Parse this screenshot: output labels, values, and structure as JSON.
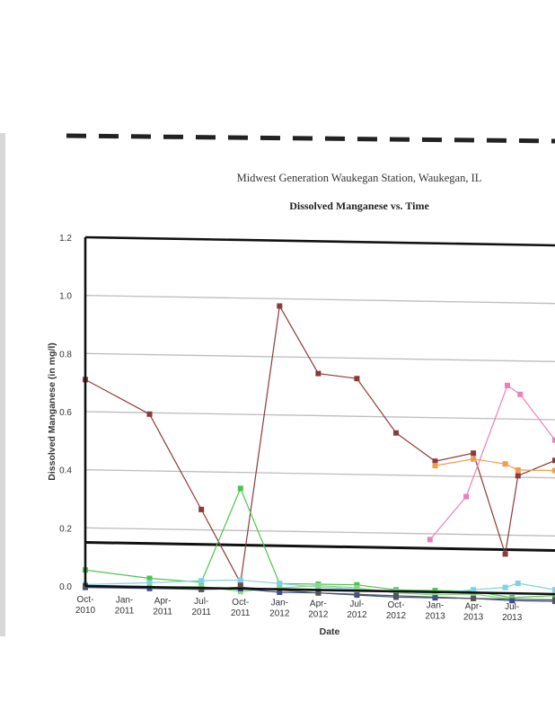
{
  "chart_data": {
    "type": "line",
    "title": "Midwest Generation Waukegan Station, Waukegan, IL",
    "subtitle": "Dissolved Manganese vs. Time",
    "xlabel": "Date",
    "ylabel": "Dissolved Manganese (in mg/l)",
    "ylim": [
      0,
      1.2
    ],
    "yticks": [
      "0.0",
      "0.2",
      "0.4",
      "0.6",
      "0.8",
      "1.0",
      "1.2"
    ],
    "xticks": [
      {
        "date": "2010-10-01",
        "line1": "Oct-",
        "line2": "2010"
      },
      {
        "date": "2011-01-01",
        "line1": "Jan-",
        "line2": "2011"
      },
      {
        "date": "2011-04-01",
        "line1": "Apr-",
        "line2": "2011"
      },
      {
        "date": "2011-07-01",
        "line1": "Jul-",
        "line2": "2011"
      },
      {
        "date": "2011-10-01",
        "line1": "Oct-",
        "line2": "2011"
      },
      {
        "date": "2012-01-01",
        "line1": "Jan-",
        "line2": "2012"
      },
      {
        "date": "2012-04-01",
        "line1": "Apr-",
        "line2": "2012"
      },
      {
        "date": "2012-07-01",
        "line1": "Jul-",
        "line2": "2012"
      },
      {
        "date": "2012-10-01",
        "line1": "Oct-",
        "line2": "2012"
      },
      {
        "date": "2013-01-01",
        "line1": "Jan-",
        "line2": "2013"
      },
      {
        "date": "2013-04-01",
        "line1": "Apr-",
        "line2": "2013"
      },
      {
        "date": "2013-07-01",
        "line1": "Jul-",
        "line2": "2013"
      }
    ],
    "xlim": [
      "2010-10-01",
      "2013-10-10"
    ],
    "grid": "horizontal",
    "reference_line": {
      "value": 0.15,
      "color": "#111111"
    },
    "series": [
      {
        "color": "#8b3a3a",
        "points": [
          [
            "2010-10-01",
            0.71
          ],
          [
            "2011-03-01",
            0.595
          ],
          [
            "2011-07-01",
            0.27
          ],
          [
            "2011-10-01",
            0.02
          ],
          [
            "2012-01-01",
            0.975
          ],
          [
            "2012-04-01",
            0.745
          ],
          [
            "2012-07-01",
            0.73
          ],
          [
            "2012-10-01",
            0.545
          ],
          [
            "2013-01-01",
            0.45
          ],
          [
            "2013-04-01",
            0.48
          ],
          [
            "2013-06-15",
            0.135
          ],
          [
            "2013-07-15",
            0.405
          ],
          [
            "2013-10-10",
            0.46
          ]
        ]
      },
      {
        "color": "#f39c4a",
        "points": [
          [
            "2013-01-01",
            0.435
          ],
          [
            "2013-04-01",
            0.46
          ],
          [
            "2013-06-15",
            0.445
          ],
          [
            "2013-07-15",
            0.425
          ],
          [
            "2013-10-10",
            0.425
          ]
        ]
      },
      {
        "color": "#ec7fb8",
        "points": [
          [
            "2012-12-20",
            0.18
          ],
          [
            "2013-03-15",
            0.33
          ],
          [
            "2013-06-20",
            0.715
          ],
          [
            "2013-07-20",
            0.685
          ],
          [
            "2013-10-10",
            0.53
          ]
        ]
      },
      {
        "color": "#4cc44c",
        "points": [
          [
            "2010-10-01",
            0.055
          ],
          [
            "2011-03-01",
            0.03
          ],
          [
            "2011-07-01",
            0.02
          ],
          [
            "2011-10-01",
            0.345
          ],
          [
            "2012-01-01",
            0.02
          ],
          [
            "2012-04-01",
            0.02
          ],
          [
            "2012-07-01",
            0.02
          ],
          [
            "2012-10-01",
            0.005
          ],
          [
            "2013-01-01",
            0.005
          ],
          [
            "2013-04-01",
            0.005
          ],
          [
            "2013-07-01",
            -0.015
          ],
          [
            "2013-10-10",
            -0.005
          ]
        ]
      },
      {
        "color": "#7ed2e8",
        "points": [
          [
            "2010-10-01",
            0.005
          ],
          [
            "2011-03-01",
            0.015
          ],
          [
            "2011-07-01",
            0.025
          ],
          [
            "2011-10-01",
            0.03
          ],
          [
            "2012-01-01",
            0.02
          ],
          [
            "2012-04-01",
            0.01
          ],
          [
            "2012-07-01",
            0.005
          ],
          [
            "2012-10-01",
            0.0
          ],
          [
            "2013-01-01",
            -0.005
          ],
          [
            "2013-04-01",
            0.01
          ],
          [
            "2013-06-15",
            0.02
          ],
          [
            "2013-07-15",
            0.035
          ],
          [
            "2013-10-10",
            0.015
          ]
        ]
      },
      {
        "color": "#88d888",
        "points": [
          [
            "2010-10-01",
            0.0
          ],
          [
            "2011-03-01",
            0.0
          ],
          [
            "2011-07-01",
            0.005
          ],
          [
            "2011-10-01",
            -0.01
          ],
          [
            "2012-01-01",
            0.005
          ],
          [
            "2012-04-01",
            0.015
          ],
          [
            "2012-07-01",
            0.01
          ],
          [
            "2012-10-01",
            -0.005
          ],
          [
            "2013-01-01",
            -0.01
          ],
          [
            "2013-04-01",
            -0.005
          ],
          [
            "2013-07-01",
            -0.02
          ],
          [
            "2013-10-10",
            -0.02
          ]
        ]
      },
      {
        "color": "#3b4d8c",
        "points": [
          [
            "2010-10-01",
            -0.005
          ],
          [
            "2011-03-01",
            -0.005
          ],
          [
            "2011-07-01",
            -0.005
          ],
          [
            "2011-10-01",
            0.0
          ],
          [
            "2012-01-01",
            -0.01
          ],
          [
            "2012-04-01",
            -0.01
          ],
          [
            "2012-07-01",
            -0.015
          ],
          [
            "2012-10-01",
            -0.02
          ],
          [
            "2013-01-01",
            -0.02
          ],
          [
            "2013-04-01",
            -0.02
          ],
          [
            "2013-07-01",
            -0.025
          ],
          [
            "2013-10-10",
            -0.025
          ]
        ]
      },
      {
        "color": "#555555",
        "points": [
          [
            "2010-10-01",
            0.0
          ],
          [
            "2011-07-01",
            -0.005
          ],
          [
            "2011-10-01",
            0.005
          ],
          [
            "2012-04-01",
            -0.01
          ],
          [
            "2012-10-01",
            -0.015
          ],
          [
            "2013-04-01",
            -0.02
          ],
          [
            "2013-10-10",
            -0.02
          ]
        ]
      }
    ]
  }
}
